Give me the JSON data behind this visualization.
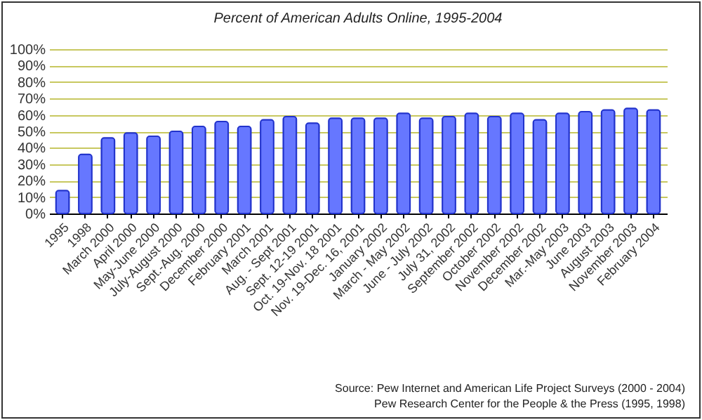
{
  "chart_data": {
    "type": "bar",
    "title": "Percent of American Adults Online, 1995-2004",
    "categories": [
      "1995",
      "1998",
      "March 2000",
      "April 2000",
      "May-June 2000",
      "July-August 2000",
      "Sept.-Aug. 2000",
      "December 2000",
      "February 2001",
      "March 2001",
      "Aug. - Sept 2001",
      "Sept. 12-19 2001",
      "Oct. 19-Nov. 18 2001",
      "Nov. 19-Dec. 16, 2001",
      "January 2002",
      "March - May 2002",
      "June - July 2002",
      "July 31, 2002",
      "September 2002",
      "October 2002",
      "November 2002",
      "December 2002",
      "Mar.-May 2003",
      "June 2003",
      "August 2003",
      "November 2003",
      "February 2004"
    ],
    "values": [
      14,
      36,
      46,
      49,
      47,
      50,
      53,
      56,
      53,
      57,
      59,
      55,
      58,
      58,
      58,
      61,
      58,
      59,
      61,
      59,
      61,
      57,
      61,
      62,
      63,
      64,
      63
    ],
    "color": "#6677ff",
    "ylim": [
      0,
      100
    ],
    "yticks": [
      {
        "value": 0,
        "label": "0%"
      },
      {
        "value": 10,
        "label": "10%"
      },
      {
        "value": 20,
        "label": "20%"
      },
      {
        "value": 30,
        "label": "30%"
      },
      {
        "value": 40,
        "label": "40%"
      },
      {
        "value": 50,
        "label": "50%"
      },
      {
        "value": 60,
        "label": "60%"
      },
      {
        "value": 70,
        "label": "70%"
      },
      {
        "value": 80,
        "label": "80%"
      },
      {
        "value": 90,
        "label": "90%"
      },
      {
        "value": 100,
        "label": "100%"
      }
    ],
    "grid": "y",
    "annotations": [
      "Source: Pew Internet and American Life Project Surveys (2000 - 2004)",
      "Pew Research Center for the People & the Press (1995, 1998)"
    ]
  }
}
